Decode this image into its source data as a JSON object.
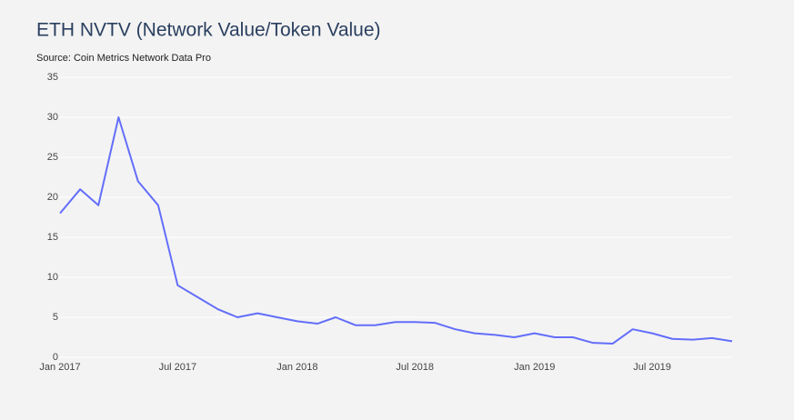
{
  "chart_data": {
    "type": "line",
    "title": "ETH NVTV (Network Value/Token Value)",
    "subtitle": "Source: Coin Metrics Network Data Pro",
    "x": [
      "2017-01",
      "2017-02",
      "2017-03",
      "2017-04",
      "2017-05",
      "2017-06",
      "2017-07",
      "2017-08",
      "2017-09",
      "2017-10",
      "2017-11",
      "2017-12",
      "2018-01",
      "2018-02",
      "2018-03",
      "2018-04",
      "2018-05",
      "2018-06",
      "2018-07",
      "2018-08",
      "2018-09",
      "2018-10",
      "2018-11",
      "2018-12",
      "2019-01",
      "2019-02",
      "2019-03",
      "2019-04",
      "2019-05",
      "2019-06",
      "2019-07",
      "2019-08",
      "2019-09",
      "2019-10",
      "2019-11"
    ],
    "series": [
      {
        "name": "NVTV",
        "color": "#636efa",
        "values": [
          18,
          21,
          19,
          30,
          22,
          19,
          9,
          7.5,
          6,
          5,
          5.5,
          5,
          4.5,
          4.2,
          5,
          4,
          4,
          4.4,
          4.4,
          4.3,
          3.5,
          3,
          2.8,
          2.5,
          3,
          2.5,
          2.5,
          1.8,
          1.7,
          3.5,
          3,
          2.3,
          2.2,
          2.4,
          2
        ]
      }
    ],
    "xlim": [
      "2017-01",
      "2019-11"
    ],
    "xticks": [
      {
        "value": "2017-01",
        "label": "Jan 2017"
      },
      {
        "value": "2017-07",
        "label": "Jul 2017"
      },
      {
        "value": "2018-01",
        "label": "Jan 2018"
      },
      {
        "value": "2018-07",
        "label": "Jul 2018"
      },
      {
        "value": "2019-01",
        "label": "Jan 2019"
      },
      {
        "value": "2019-07",
        "label": "Jul 2019"
      }
    ],
    "ylim": [
      0,
      35
    ],
    "yticks": [
      0,
      5,
      10,
      15,
      20,
      25,
      30,
      35
    ],
    "grid": true
  }
}
